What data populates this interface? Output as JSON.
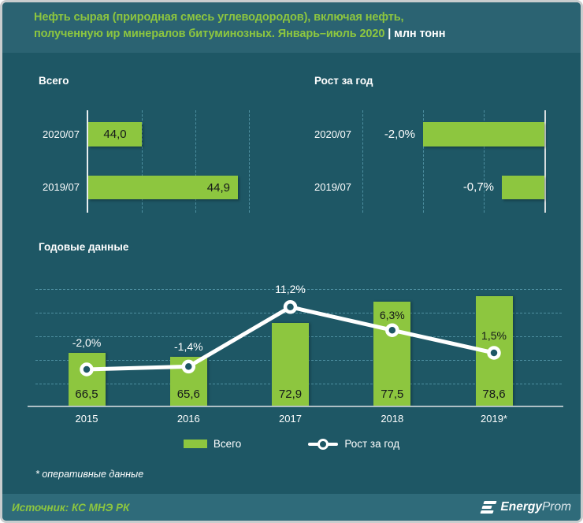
{
  "header": {
    "title_line1": "Нефть сырая (природная смесь углеводородов), включая нефть,",
    "title_line2": "полученную ир минералов битуминозных. Январь–июль 2020",
    "separator": "|",
    "unit": "млн тонн"
  },
  "colors": {
    "accent_green": "#8dc63f",
    "background": "#1e5765",
    "header_background": "#2b6372",
    "footer_background": "#2f6b7a",
    "gridline": "#4d8fa0",
    "line_series": "#ffffff",
    "bar_value_text": "#15181a",
    "white_text": "#ffffff",
    "axis_line": "#e8eef0",
    "baseline": "#aebfc5"
  },
  "chart_data": [
    {
      "name": "total",
      "type": "bar",
      "orientation": "horizontal",
      "title": "Всего",
      "categories": [
        "2020/07",
        "2019/07"
      ],
      "values": [
        44.0,
        44.9
      ],
      "value_labels": [
        "44,0",
        "44,9"
      ],
      "grid": "vertical-dashed",
      "axis_side": "left"
    },
    {
      "name": "growth-yoy",
      "type": "bar",
      "orientation": "horizontal",
      "title": "Рост за год",
      "categories": [
        "2020/07",
        "2019/07"
      ],
      "values": [
        -2.0,
        -0.7
      ],
      "value_labels": [
        "-2,0%",
        "-0,7%"
      ],
      "grid": "vertical-dashed",
      "axis_side": "right"
    },
    {
      "name": "annual",
      "type": "bar+line",
      "title": "Годовые данные",
      "categories": [
        "2015",
        "2016",
        "2017",
        "2018",
        "2019*"
      ],
      "series": [
        {
          "name": "Всего",
          "type": "bar",
          "values": [
            66.5,
            65.6,
            72.9,
            77.5,
            78.6
          ],
          "labels": [
            "66,5",
            "65,6",
            "72,9",
            "77,5",
            "78,6"
          ]
        },
        {
          "name": "Рост за год",
          "type": "line",
          "values": [
            -2.0,
            -1.4,
            11.2,
            6.3,
            1.5
          ],
          "labels": [
            "-2,0%",
            "-1,4%",
            "11,2%",
            "6,3%",
            "1,5%"
          ],
          "label_colors": [
            "white",
            "white",
            "white",
            "black",
            "black"
          ]
        }
      ],
      "grid": "horizontal-dashed",
      "legend_position": "bottom"
    }
  ],
  "legend": {
    "items": [
      {
        "label": "Всего",
        "marker": "bar-swatch"
      },
      {
        "label": "Рост за год",
        "marker": "line-dot"
      }
    ]
  },
  "footnote": "* оперативные данные",
  "footer": {
    "source": "Источник: КС МНЭ РК",
    "logo_text_bold": "Energy",
    "logo_text_light": "Prom"
  }
}
